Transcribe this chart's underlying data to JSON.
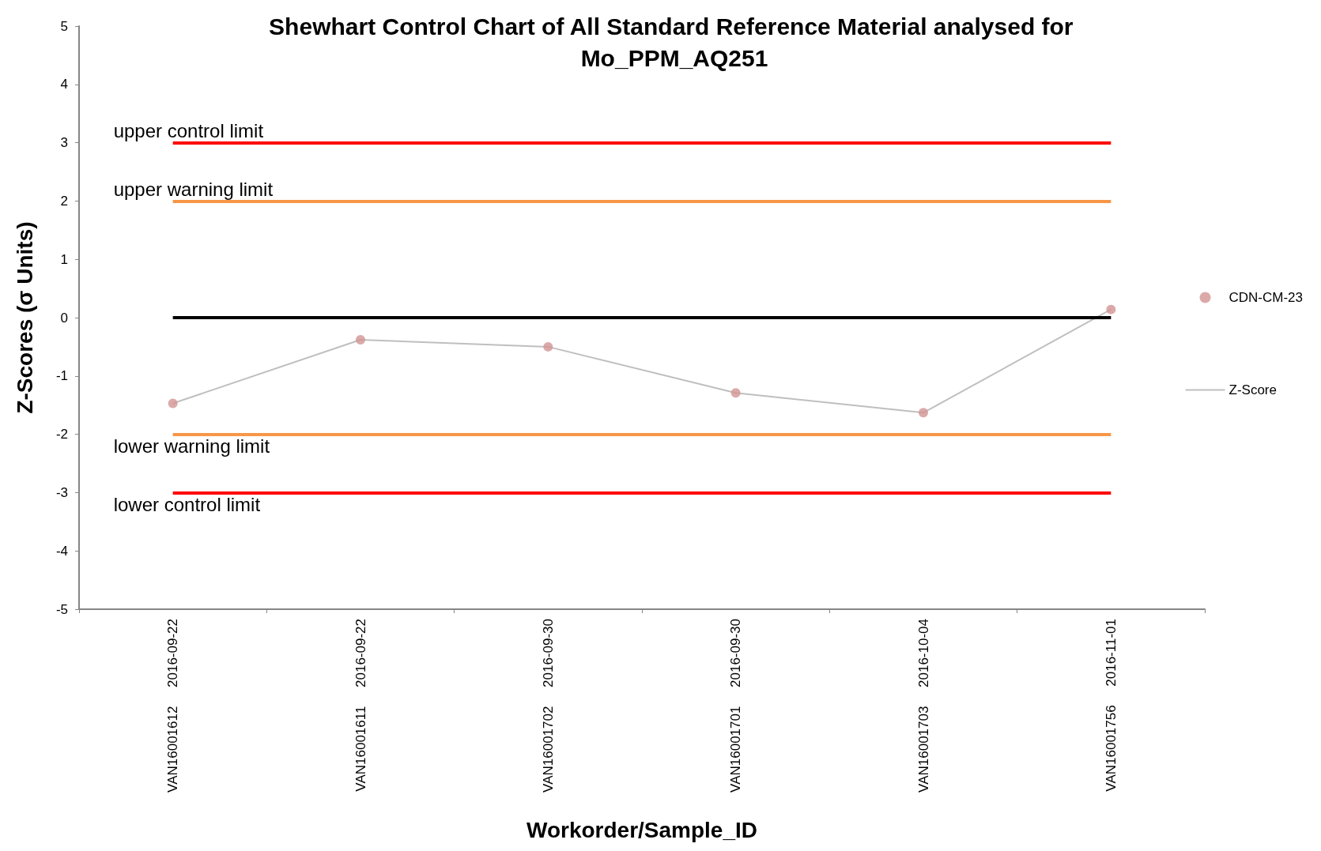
{
  "chart_data": {
    "type": "scatter",
    "title": "Shewhart Control Chart of All Standard Reference Material analysed for Mo_PPM_AQ251",
    "xlabel": "Workorder/Sample_ID",
    "ylabel": "Z-Scores (σ Units)",
    "categories": [
      "VAN16001612     2016-09-22",
      "VAN16001611     2016-09-22",
      "VAN16001702     2016-09-30",
      "VAN16001701     2016-09-30",
      "VAN16001703     2016-10-04",
      "VAN16001756     2016-11-01"
    ],
    "series": [
      {
        "name": "CDN-CM-23",
        "color": "#d39493",
        "marker": "circle",
        "values": [
          -1.47,
          -0.38,
          -0.5,
          -1.29,
          -1.63,
          0.14
        ]
      },
      {
        "name": "Z-Score",
        "type": "line",
        "color": "#bfbfbf",
        "marker": "none",
        "values": [
          -1.47,
          -0.38,
          -0.5,
          -1.29,
          -1.63,
          0.14
        ]
      }
    ],
    "ylim": [
      -5,
      5
    ],
    "yticks": [
      -5,
      -4,
      -3,
      -2,
      -1,
      0,
      1,
      2,
      3,
      4,
      5
    ],
    "grid": false,
    "legend": "right",
    "ref_lines": [
      {
        "axis": "y",
        "value": 3,
        "label": "upper control limit",
        "color": "#ff0000"
      },
      {
        "axis": "y",
        "value": 2,
        "label": "upper warning limit",
        "color": "#f79646"
      },
      {
        "axis": "y",
        "value": 0,
        "label": null,
        "color": "#000000"
      },
      {
        "axis": "y",
        "value": -2,
        "label": "lower warning limit",
        "color": "#f79646"
      },
      {
        "axis": "y",
        "value": -3,
        "label": "lower control limit",
        "color": "#ff0000"
      }
    ]
  }
}
